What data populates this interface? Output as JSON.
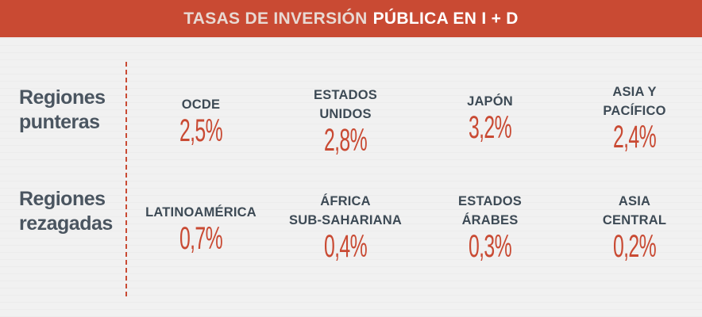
{
  "header": {
    "title_part1": "TASAS DE INVERSIÓN",
    "title_part2": "PÚBLICA EN I + D"
  },
  "rows": [
    {
      "label_line1": "Regiones",
      "label_line2": "punteras",
      "items": [
        {
          "name_line1": "OCDE",
          "name_line2": "",
          "value": "2,5%"
        },
        {
          "name_line1": "ESTADOS",
          "name_line2": "UNIDOS",
          "value": "2,8%"
        },
        {
          "name_line1": "JAPÓN",
          "name_line2": "",
          "value": "3,2%"
        },
        {
          "name_line1": "ASIA Y",
          "name_line2": "PACÍFICO",
          "value": "2,4%"
        }
      ]
    },
    {
      "label_line1": "Regiones",
      "label_line2": "rezagadas",
      "items": [
        {
          "name_line1": "LATINOAMÉRICA",
          "name_line2": "",
          "value": "0,7%"
        },
        {
          "name_line1": "ÁFRICA",
          "name_line2": "SUB-SAHARIANA",
          "value": "0,4%"
        },
        {
          "name_line1": "ESTADOS",
          "name_line2": "ÁRABES",
          "value": "0,3%"
        },
        {
          "name_line1": "ASIA",
          "name_line2": "CENTRAL",
          "value": "0,2%"
        }
      ]
    }
  ],
  "colors": {
    "accent": "#c94a33",
    "text": "#3d4a55",
    "background": "#f1f1f1"
  }
}
